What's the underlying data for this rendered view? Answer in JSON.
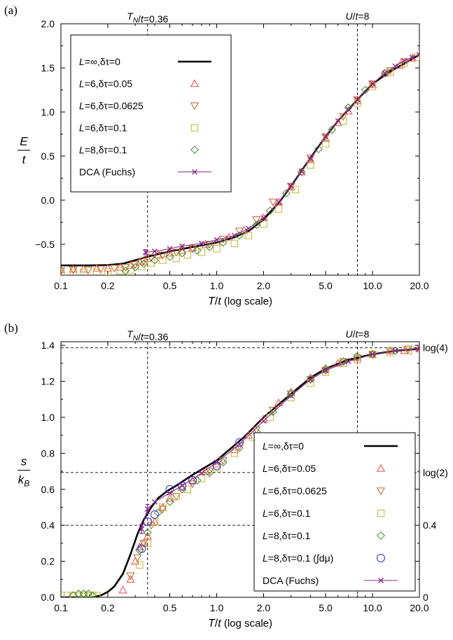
{
  "panel_labels": [
    "(a)",
    "(b)"
  ],
  "chart_data": [
    {
      "type": "line",
      "panel": "(a)",
      "xlabel": "T/t (log scale)",
      "ylabel": "E/t",
      "xscale": "log",
      "xlim": [
        0.1,
        20.0
      ],
      "ylim": [
        -0.85,
        2.0
      ],
      "x_ticks": [
        0.1,
        0.2,
        0.5,
        1.0,
        2.0,
        5.0,
        10.0,
        20.0
      ],
      "x_tick_labels": [
        "0.1",
        "0.2",
        "0.5",
        "1.0",
        "2.0",
        "5.0",
        "10.0",
        "20.0"
      ],
      "y_ticks": [
        -0.5,
        0.0,
        0.5,
        1.0,
        1.5,
        2.0
      ],
      "y_tick_labels": [
        "−0.5",
        "0.0",
        "0.5",
        "1.0",
        "1.5",
        "2.0"
      ],
      "annotations": [
        {
          "text": "T_N/t=0.36",
          "x": 0.36
        },
        {
          "text": "U/t=8",
          "x": 8.0
        }
      ],
      "legend_position": "top-left",
      "legend": [
        "L=∞,δτ=0",
        "L=6,δτ=0.05",
        "L=6,δτ=0.0625",
        "L=6,δτ=0.1",
        "L=8,δτ=0.1",
        "DCA (Fuchs)"
      ],
      "series": [
        {
          "name": "L=∞,δτ=0",
          "style": "line",
          "color": "#000000",
          "x": [
            0.1,
            0.15,
            0.2,
            0.25,
            0.3,
            0.36,
            0.5,
            0.7,
            1.0,
            1.3,
            1.6,
            2.0,
            2.5,
            3.0,
            4.0,
            5.0,
            6.0,
            8.0,
            10.0,
            13.0,
            16.0,
            20.0
          ],
          "y": [
            -0.74,
            -0.74,
            -0.735,
            -0.72,
            -0.68,
            -0.64,
            -0.58,
            -0.53,
            -0.48,
            -0.42,
            -0.35,
            -0.22,
            -0.03,
            0.16,
            0.48,
            0.72,
            0.9,
            1.14,
            1.32,
            1.46,
            1.55,
            1.65
          ]
        },
        {
          "name": "L=6,δτ=0.05",
          "style": "marker",
          "marker": "triangle-up",
          "color": "#e8474c",
          "x": [
            0.1,
            0.12,
            0.14,
            0.17,
            0.2,
            0.24,
            0.28,
            0.32,
            0.36,
            0.42,
            0.5,
            0.6,
            0.7,
            0.85,
            1.0,
            1.2,
            1.5,
            2.0,
            2.5,
            3.0,
            3.5,
            4.0,
            5.0,
            6.0,
            7.0,
            8.0,
            10.0,
            12.0,
            15.0,
            18.0
          ],
          "y": [
            -0.79,
            -0.78,
            -0.78,
            -0.77,
            -0.77,
            -0.76,
            -0.74,
            -0.7,
            -0.66,
            -0.62,
            -0.6,
            -0.57,
            -0.54,
            -0.5,
            -0.48,
            -0.42,
            -0.34,
            -0.2,
            -0.02,
            0.15,
            0.32,
            0.46,
            0.7,
            0.88,
            1.01,
            1.13,
            1.31,
            1.44,
            1.53,
            1.61
          ]
        },
        {
          "name": "L=6,δτ=0.0625",
          "style": "marker",
          "marker": "triangle-down",
          "color": "#b8652a",
          "x": [
            0.1,
            0.12,
            0.15,
            0.18,
            0.22,
            0.26,
            0.3,
            0.34,
            0.38,
            0.45,
            0.55,
            0.7,
            0.9,
            1.1,
            1.4,
            1.8,
            2.3,
            3.0,
            4.0,
            5.0,
            6.5,
            8.0,
            10.0,
            13.0,
            16.0
          ],
          "y": [
            -0.8,
            -0.79,
            -0.79,
            -0.78,
            -0.77,
            -0.76,
            -0.73,
            -0.69,
            -0.65,
            -0.62,
            -0.59,
            -0.55,
            -0.5,
            -0.44,
            -0.35,
            -0.22,
            -0.02,
            0.16,
            0.48,
            0.72,
            0.95,
            1.14,
            1.32,
            1.47,
            1.57
          ]
        },
        {
          "name": "L=6,δτ=0.1",
          "style": "marker",
          "marker": "square",
          "color": "#c8b432",
          "x": [
            0.1,
            0.12,
            0.14,
            0.17,
            0.2,
            0.24,
            0.28,
            0.33,
            0.38,
            0.45,
            0.55,
            0.65,
            0.8,
            1.0,
            1.3,
            1.6,
            2.0,
            2.5,
            3.2,
            4.0,
            5.0,
            6.5,
            8.0,
            10.0,
            13.0,
            16.0,
            19.0
          ],
          "y": [
            -0.83,
            -0.82,
            -0.82,
            -0.82,
            -0.81,
            -0.8,
            -0.79,
            -0.75,
            -0.71,
            -0.68,
            -0.66,
            -0.62,
            -0.59,
            -0.55,
            -0.49,
            -0.4,
            -0.27,
            -0.1,
            0.12,
            0.4,
            0.64,
            0.9,
            1.1,
            1.29,
            1.45,
            1.55,
            1.62
          ]
        },
        {
          "name": "L=8,δτ=0.1",
          "style": "marker",
          "marker": "diamond",
          "color": "#3f8a2c",
          "x": [
            0.26,
            0.3,
            0.34,
            0.4,
            0.5,
            0.6,
            0.75,
            0.9,
            1.1,
            1.4,
            1.8,
            2.2,
            2.8,
            3.5,
            4.5,
            5.5,
            7.0,
            9.0,
            12.0
          ],
          "y": [
            -0.8,
            -0.76,
            -0.72,
            -0.68,
            -0.64,
            -0.6,
            -0.57,
            -0.53,
            -0.48,
            -0.4,
            -0.28,
            -0.12,
            0.08,
            0.32,
            0.58,
            0.8,
            1.05,
            1.25,
            1.44
          ]
        },
        {
          "name": "DCA (Fuchs)",
          "style": "line-marker",
          "marker": "cross",
          "color": "#8a2a8a",
          "x": [
            0.35,
            0.4,
            0.5,
            0.6,
            0.8,
            1.0,
            1.3,
            1.6,
            2.0,
            2.5,
            3.0,
            3.5,
            4.0,
            5.0,
            6.0,
            7.0,
            8.0,
            10.0,
            12.0,
            14.0,
            16.0,
            18.0,
            20.0
          ],
          "y": [
            -0.59,
            -0.58,
            -0.55,
            -0.52,
            -0.49,
            -0.45,
            -0.4,
            -0.32,
            -0.2,
            -0.02,
            0.16,
            0.33,
            0.47,
            0.72,
            0.9,
            1.03,
            1.14,
            1.32,
            1.44,
            1.52,
            1.58,
            1.62,
            1.65
          ],
          "error_bars": [
            {
              "x": 0.35,
              "y": -0.59,
              "err": 0.03
            }
          ]
        }
      ]
    },
    {
      "type": "line",
      "panel": "(b)",
      "xlabel": "T/t (log scale)",
      "ylabel": "s/k_B",
      "xscale": "log",
      "xlim": [
        0.1,
        20.0
      ],
      "ylim": [
        0.0,
        1.42
      ],
      "x_ticks": [
        0.1,
        0.2,
        0.5,
        1.0,
        2.0,
        5.0,
        10.0,
        20.0
      ],
      "x_tick_labels": [
        "0.1",
        "0.2",
        "0.5",
        "1.0",
        "2.0",
        "5.0",
        "10.0",
        "20.0"
      ],
      "y_ticks": [
        0.0,
        0.2,
        0.4,
        0.6,
        0.8,
        1.0,
        1.2,
        1.4
      ],
      "y_tick_labels": [
        "0.0",
        "0.2",
        "0.4",
        "0.6",
        "0.8",
        "1.0",
        "1.2",
        "1.4"
      ],
      "right_ticks": [
        0.0,
        0.4,
        0.6931,
        1.3863
      ],
      "right_tick_labels": [
        "0",
        "0.4",
        "log(2)",
        "log(4)"
      ],
      "annotations": [
        {
          "text": "T_N/t=0.36",
          "x": 0.36
        },
        {
          "text": "U/t=8",
          "x": 8.0
        }
      ],
      "reference_lines_y": [
        0.4,
        0.6931,
        1.3863
      ],
      "legend_position": "bottom-right",
      "legend": [
        "L=∞,δτ=0",
        "L=6,δτ=0.05",
        "L=6,δτ=0.0625",
        "L=6,δτ=0.1",
        "L=8,δτ=0.1",
        "L=8,δτ=0.1 (∫dμ)",
        "DCA (Fuchs)"
      ],
      "series": [
        {
          "name": "L=∞,δτ=0",
          "style": "line",
          "color": "#000000",
          "x": [
            0.1,
            0.14,
            0.16,
            0.18,
            0.2,
            0.22,
            0.25,
            0.28,
            0.31,
            0.34,
            0.38,
            0.42,
            0.48,
            0.55,
            0.7,
            1.0,
            1.5,
            2.0,
            3.0,
            4.0,
            5.0,
            7.0,
            10.0,
            14.0,
            20.0
          ],
          "y": [
            0.0,
            0.0,
            0.0,
            0.01,
            0.03,
            0.06,
            0.13,
            0.24,
            0.35,
            0.43,
            0.5,
            0.55,
            0.59,
            0.62,
            0.68,
            0.76,
            0.89,
            1.0,
            1.13,
            1.22,
            1.27,
            1.32,
            1.35,
            1.37,
            1.38
          ]
        },
        {
          "name": "L=6,δτ=0.05",
          "style": "marker",
          "marker": "triangle-up",
          "color": "#e8474c",
          "x": [
            0.25,
            0.28,
            0.3,
            0.32,
            0.34,
            0.36,
            0.4,
            0.45,
            0.5,
            0.6,
            0.7,
            0.85,
            1.0,
            1.3,
            1.6,
            2.0,
            2.5,
            3.0,
            4.0,
            5.0,
            6.0,
            8.0,
            10.0,
            13.0,
            16.0,
            20.0
          ],
          "y": [
            0.04,
            0.1,
            0.2,
            0.28,
            0.3,
            0.34,
            0.42,
            0.5,
            0.55,
            0.61,
            0.65,
            0.7,
            0.74,
            0.82,
            0.9,
            0.99,
            1.08,
            1.14,
            1.22,
            1.27,
            1.3,
            1.33,
            1.35,
            1.37,
            1.37,
            1.38
          ]
        },
        {
          "name": "L=6,δτ=0.0625",
          "style": "marker",
          "marker": "triangle-down",
          "color": "#b8652a",
          "x": [
            0.28,
            0.31,
            0.34,
            0.38,
            0.45,
            0.55,
            0.7,
            0.9,
            1.1,
            1.4,
            1.8,
            2.3,
            3.0,
            4.0,
            5.0,
            6.5,
            8.0,
            10.0,
            13.0,
            17.0
          ],
          "y": [
            0.12,
            0.22,
            0.3,
            0.4,
            0.49,
            0.56,
            0.63,
            0.7,
            0.76,
            0.84,
            0.93,
            1.04,
            1.13,
            1.21,
            1.26,
            1.31,
            1.33,
            1.35,
            1.37,
            1.38
          ]
        },
        {
          "name": "L=6,δτ=0.1",
          "style": "marker",
          "marker": "square",
          "color": "#c8b432",
          "x": [
            0.1,
            0.11,
            0.12,
            0.13,
            0.14,
            0.15,
            0.16,
            0.17,
            0.32,
            0.36,
            0.4,
            0.45,
            0.55,
            0.65,
            0.8,
            1.0,
            1.3,
            1.7,
            2.2,
            3.0,
            4.0,
            5.0,
            6.5,
            8.0,
            10.0,
            13.0,
            17.0
          ],
          "y": [
            0.01,
            0.01,
            0.01,
            0.01,
            0.01,
            0.01,
            0.01,
            0.01,
            0.18,
            0.3,
            0.42,
            0.5,
            0.56,
            0.6,
            0.66,
            0.72,
            0.8,
            0.89,
            1.0,
            1.11,
            1.19,
            1.25,
            1.3,
            1.32,
            1.35,
            1.36,
            1.37
          ]
        },
        {
          "name": "L=8,δτ=0.1",
          "style": "marker",
          "marker": "diamond",
          "color": "#3f8a2c",
          "x": [
            0.12,
            0.13,
            0.14,
            0.15,
            0.16,
            0.32,
            0.36,
            0.42,
            0.5,
            0.6,
            0.75,
            0.9,
            1.1,
            1.4,
            1.8,
            2.3,
            3.0,
            4.0,
            5.0,
            6.5,
            8.0,
            10.0,
            14.0
          ],
          "y": [
            0.01,
            0.02,
            0.02,
            0.02,
            0.01,
            0.26,
            0.36,
            0.47,
            0.53,
            0.6,
            0.65,
            0.69,
            0.75,
            0.83,
            0.92,
            1.03,
            1.13,
            1.21,
            1.27,
            1.31,
            1.34,
            1.35,
            1.37
          ]
        },
        {
          "name": "L=8,δτ=0.1 (∫dμ)",
          "style": "marker",
          "marker": "circle",
          "color": "#2b2bd6",
          "x": [
            0.33,
            0.36,
            0.4,
            0.5,
            0.6,
            0.7,
            1.0,
            1.4
          ],
          "y": [
            0.27,
            0.42,
            0.46,
            0.6,
            0.62,
            0.65,
            0.73,
            0.86
          ]
        },
        {
          "name": "DCA (Fuchs)",
          "style": "line-marker",
          "marker": "cross",
          "color": "#8a2a8a",
          "x": [
            0.33,
            0.36,
            0.4,
            0.5,
            0.6,
            0.8,
            1.0,
            1.4,
            2.0,
            3.0,
            4.0,
            5.0,
            7.0,
            10.0,
            14.0,
            20.0
          ],
          "y": [
            0.38,
            0.49,
            0.53,
            0.58,
            0.62,
            0.69,
            0.75,
            0.85,
            0.98,
            1.12,
            1.21,
            1.26,
            1.31,
            1.35,
            1.37,
            1.38
          ],
          "error_bars": [
            {
              "x": 0.33,
              "y": 0.38,
              "err": 0.025
            },
            {
              "x": 0.36,
              "y": 0.49,
              "err": 0.025
            }
          ]
        }
      ]
    }
  ]
}
